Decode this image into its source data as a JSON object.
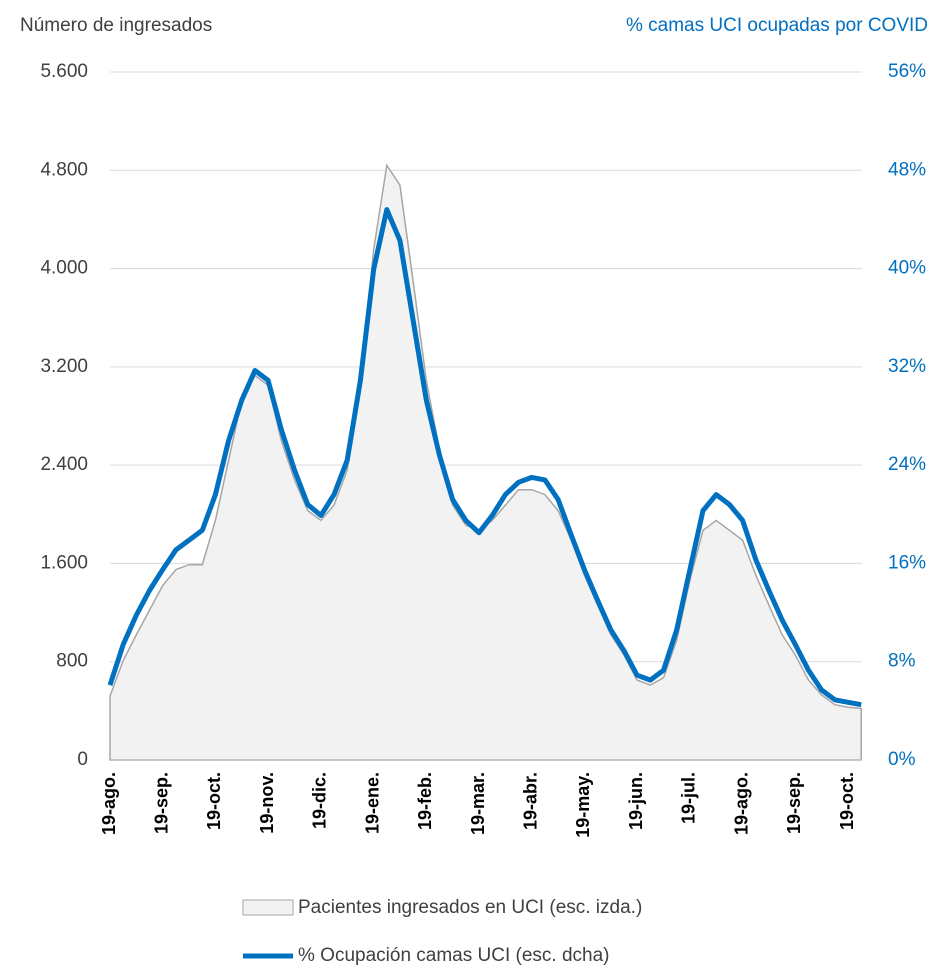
{
  "chart_data": {
    "type": "area-line",
    "y_title": "Número de ingresados",
    "y2_title": "% camas UCI ocupadas por COVID",
    "categories": [
      "19-ago.",
      null,
      null,
      null,
      "19-sep.",
      null,
      null,
      null,
      "19-oct.",
      null,
      null,
      null,
      "19-nov.",
      null,
      null,
      null,
      "19-dic.",
      null,
      null,
      null,
      "19-ene.",
      null,
      null,
      null,
      "19-feb.",
      null,
      null,
      null,
      "19-mar.",
      null,
      null,
      null,
      "19-abr.",
      null,
      null,
      null,
      "19-may.",
      null,
      null,
      null,
      "19-jun.",
      null,
      null,
      null,
      "19-jul.",
      null,
      null,
      null,
      "19-ago.",
      null,
      null,
      null,
      "19-sep.",
      null,
      null,
      null,
      "19-oct.",
      null
    ],
    "series": [
      {
        "name": "Pacientes ingresados en UCI (esc. izda.)",
        "color": "#f2f2f2",
        "axis": "y",
        "values": [
          520,
          810,
          1020,
          1220,
          1420,
          1550,
          1590,
          1590,
          1950,
          2440,
          2930,
          3130,
          3050,
          2600,
          2280,
          2030,
          1950,
          2075,
          2360,
          3010,
          4150,
          4840,
          4680,
          3900,
          3090,
          2520,
          2075,
          1910,
          1870,
          1950,
          2075,
          2200,
          2200,
          2160,
          2030,
          1790,
          1505,
          1260,
          1020,
          855,
          650,
          610,
          670,
          975,
          1465,
          1870,
          1950,
          1870,
          1790,
          1505,
          1260,
          1020,
          855,
          650,
          530,
          450,
          430,
          420
        ]
      },
      {
        "name": "% Ocupación camas UCI (esc. dcha)",
        "color": "#0070c0",
        "axis": "y2",
        "values": [
          6.1,
          9.4,
          11.8,
          13.8,
          15.5,
          17.1,
          17.9,
          18.7,
          21.6,
          26.0,
          29.3,
          31.7,
          30.9,
          26.9,
          23.6,
          20.8,
          19.9,
          21.6,
          24.4,
          30.9,
          39.9,
          44.8,
          42.3,
          35.8,
          29.3,
          24.8,
          21.2,
          19.5,
          18.5,
          19.9,
          21.6,
          22.6,
          23.0,
          22.8,
          21.2,
          18.3,
          15.5,
          13.0,
          10.6,
          8.9,
          6.9,
          6.5,
          7.3,
          10.6,
          15.5,
          20.3,
          21.6,
          20.8,
          19.5,
          16.3,
          13.8,
          11.4,
          9.4,
          7.3,
          5.7,
          4.9,
          4.7,
          4.5
        ]
      }
    ],
    "ylim": [
      0,
      5600
    ],
    "yticks": [
      0,
      800,
      {
        "value": 1600,
        "label": "1.600"
      },
      {
        "value": 2400,
        "label": "2.400"
      },
      {
        "value": 3200,
        "label": "3.200"
      },
      {
        "value": 4000,
        "label": "4.000"
      },
      {
        "value": 4800,
        "label": "4.800"
      },
      {
        "value": 5600,
        "label": "5.600"
      }
    ],
    "y2lim": [
      0,
      56
    ],
    "y2ticks": [
      {
        "value": 0,
        "label": "0%"
      },
      {
        "value": 8,
        "label": "8%"
      },
      {
        "value": 16,
        "label": "16%"
      },
      {
        "value": 24,
        "label": "24%"
      },
      {
        "value": 32,
        "label": "32%"
      },
      {
        "value": 40,
        "label": "40%"
      },
      {
        "value": 48,
        "label": "48%"
      },
      {
        "value": 56,
        "label": "56%"
      }
    ],
    "grid": true
  }
}
